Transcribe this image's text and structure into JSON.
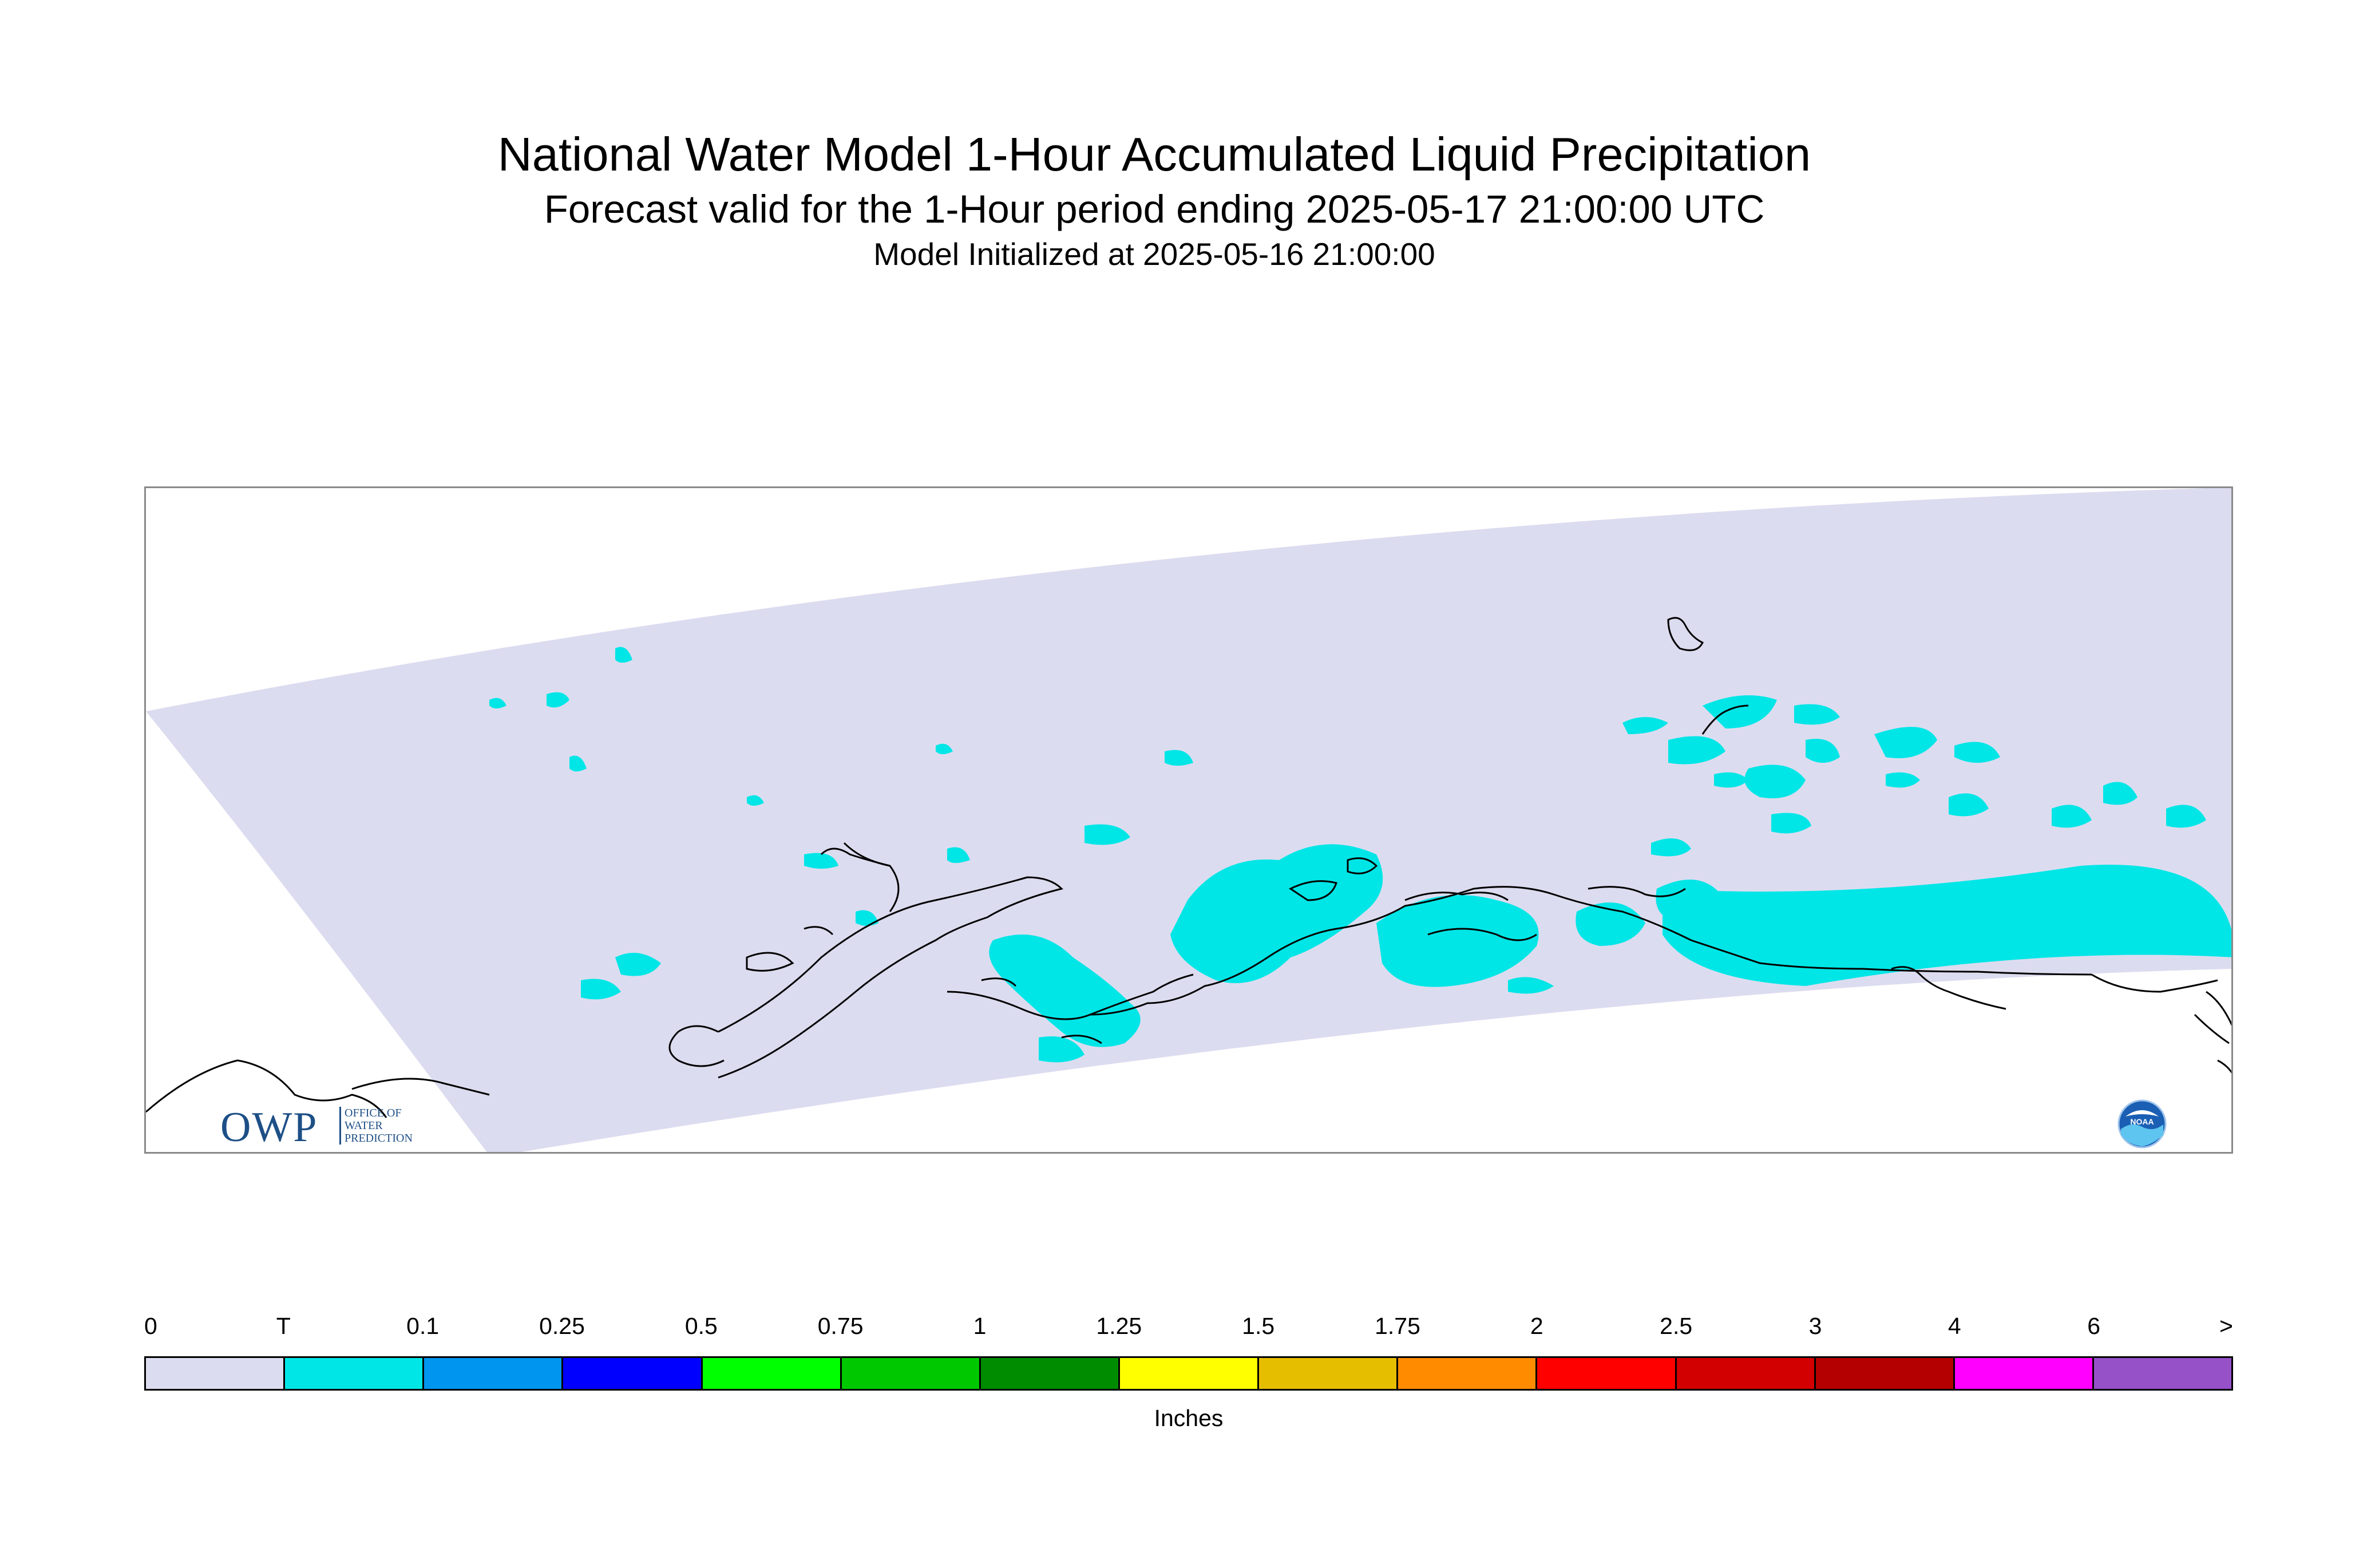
{
  "title": "National Water Model 1-Hour Accumulated Liquid Precipitation",
  "subtitle": "Forecast valid for the 1-Hour period ending 2025-05-17 21:00:00 UTC",
  "init_line": "Model Initialized at 2025-05-16 21:00:00",
  "logos": {
    "owp_letters": "OWP",
    "owp_line1": "OFFICE OF",
    "owp_line2": "WATER",
    "owp_line3": "PREDICTION",
    "noaa_text": "NOAA"
  },
  "map": {
    "domain_fill": "#dcdcf0",
    "precip_fill": "#00e6e6",
    "coastline_color": "#000000"
  },
  "legend": {
    "units": "Inches",
    "tick_labels": [
      "0",
      "T",
      "0.1",
      "0.25",
      "0.5",
      "0.75",
      "1",
      "1.25",
      "1.5",
      "1.75",
      "2",
      "2.5",
      "3",
      "4",
      "6",
      ">"
    ],
    "colors": [
      "#dcdcf0",
      "#00e6e6",
      "#0096f0",
      "#0000ff",
      "#00ff00",
      "#00c800",
      "#008c00",
      "#ffff00",
      "#e6be00",
      "#ff8c00",
      "#ff0000",
      "#d20000",
      "#b40000",
      "#ff00ff",
      "#9650c8"
    ]
  }
}
